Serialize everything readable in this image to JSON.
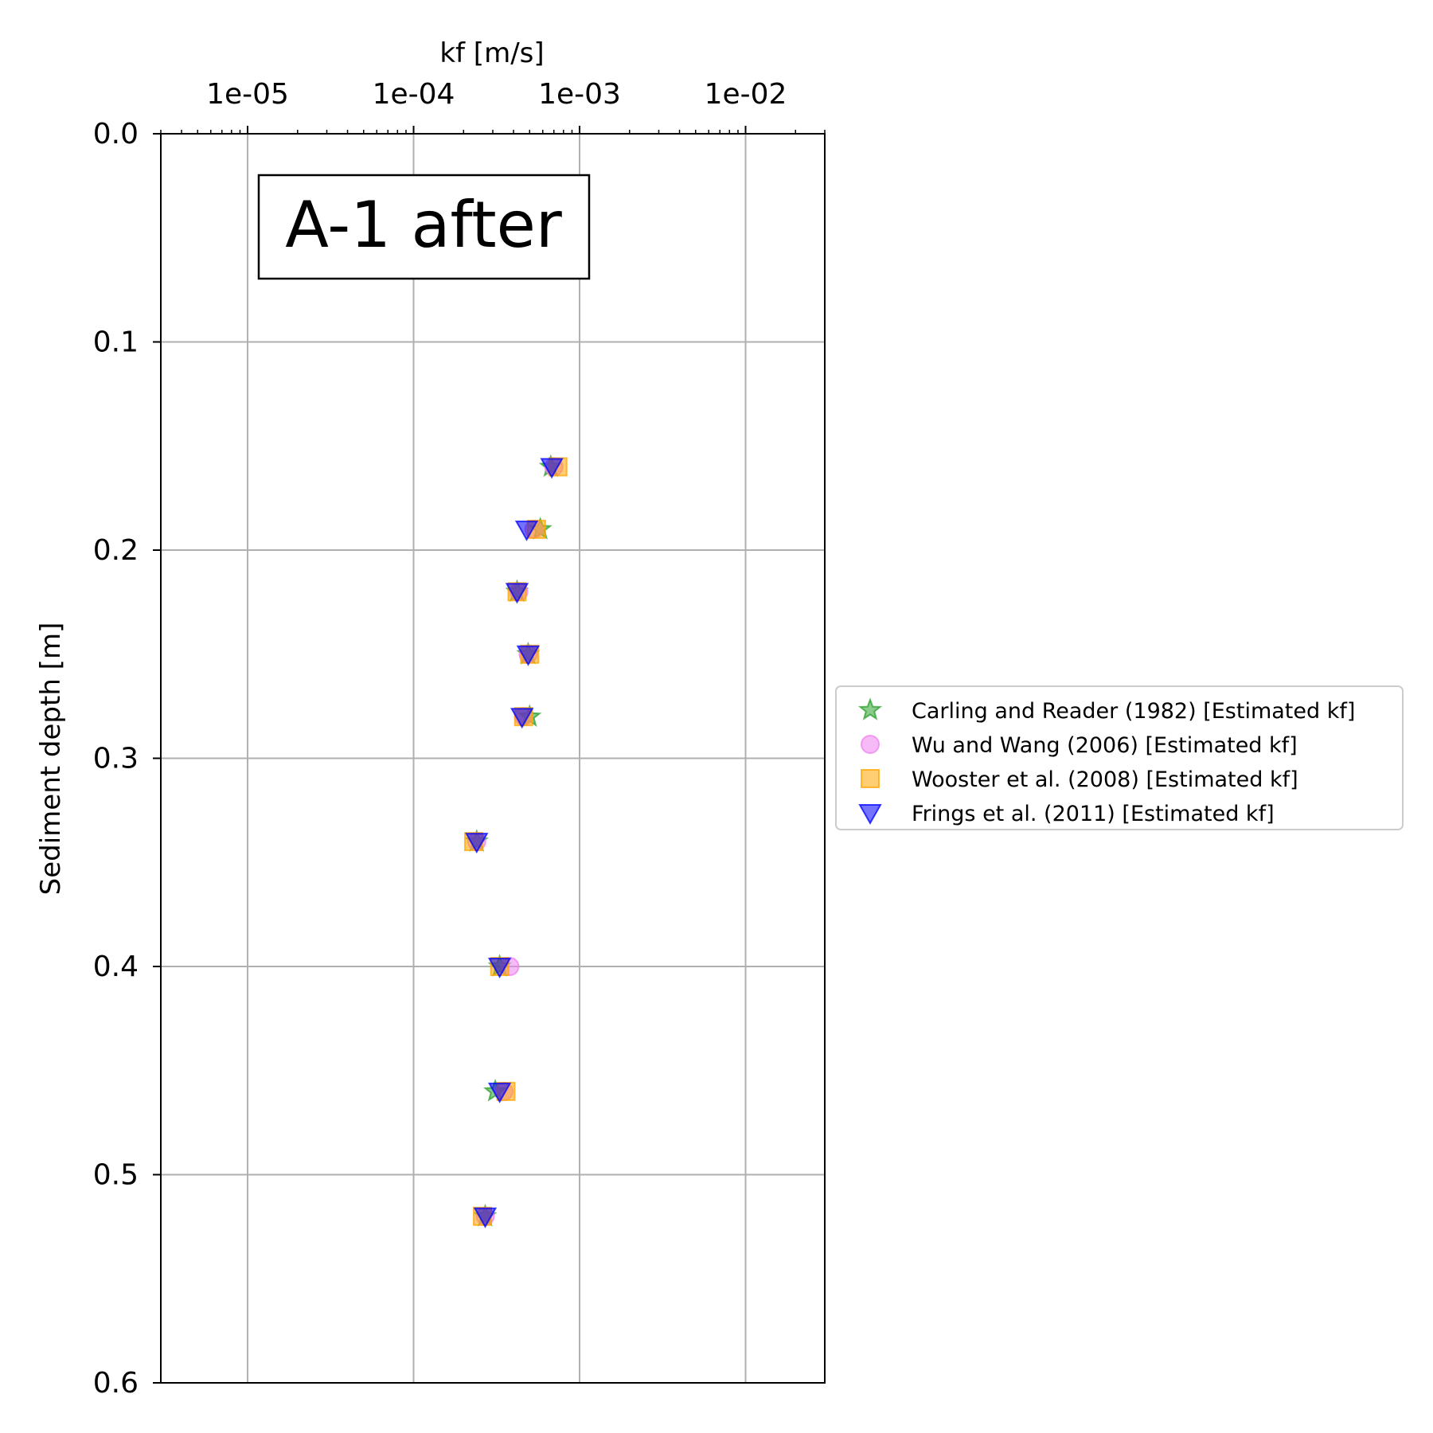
{
  "chart_data": {
    "type": "scatter",
    "title": "",
    "annotation": "A-1 after",
    "xlabel": "kf [m/s]",
    "ylabel": "Sediment depth [m]",
    "x_scale": "log",
    "x_axis_position": "top",
    "xlim": [
      3e-06,
      0.03
    ],
    "ylim": [
      0.6,
      0.0
    ],
    "y_inverted": true,
    "x_ticks": [
      1e-05,
      0.0001,
      0.001,
      0.01
    ],
    "x_tick_labels": [
      "1e-05",
      "1e-04",
      "1e-03",
      "1e-02"
    ],
    "y_ticks": [
      0.0,
      0.1,
      0.2,
      0.3,
      0.4,
      0.5,
      0.6
    ],
    "y_tick_labels": [
      "0.0",
      "0.1",
      "0.2",
      "0.3",
      "0.4",
      "0.5",
      "0.6"
    ],
    "grid": true,
    "legend_position": "outside-right",
    "series": [
      {
        "name": "Carling and Reader (1982) [Estimated kf]",
        "marker": "star",
        "color": "#2ca02c",
        "points": [
          {
            "x": 0.00067,
            "y": 0.16
          },
          {
            "x": 0.00058,
            "y": 0.19
          },
          {
            "x": 0.00042,
            "y": 0.22
          },
          {
            "x": 0.00049,
            "y": 0.25
          },
          {
            "x": 0.0005,
            "y": 0.28
          },
          {
            "x": 0.00024,
            "y": 0.34
          },
          {
            "x": 0.00033,
            "y": 0.4
          },
          {
            "x": 0.00031,
            "y": 0.46
          },
          {
            "x": 0.00027,
            "y": 0.52
          }
        ]
      },
      {
        "name": "Wu and Wang (2006) [Estimated kf]",
        "marker": "circle",
        "color": "#ee82ee",
        "points": [
          {
            "x": 0.0007,
            "y": 0.16
          },
          {
            "x": 0.00053,
            "y": 0.19
          },
          {
            "x": 0.00043,
            "y": 0.22
          },
          {
            "x": 0.00049,
            "y": 0.25
          },
          {
            "x": 0.00046,
            "y": 0.28
          },
          {
            "x": 0.00024,
            "y": 0.34
          },
          {
            "x": 0.00038,
            "y": 0.4
          },
          {
            "x": 0.00035,
            "y": 0.46
          },
          {
            "x": 0.00027,
            "y": 0.52
          }
        ]
      },
      {
        "name": "Wooster et al. (2008) [Estimated kf]",
        "marker": "square",
        "color": "#ffa500",
        "points": [
          {
            "x": 0.00074,
            "y": 0.16
          },
          {
            "x": 0.00055,
            "y": 0.19
          },
          {
            "x": 0.00042,
            "y": 0.22
          },
          {
            "x": 0.0005,
            "y": 0.25
          },
          {
            "x": 0.00046,
            "y": 0.28
          },
          {
            "x": 0.00023,
            "y": 0.34
          },
          {
            "x": 0.00033,
            "y": 0.4
          },
          {
            "x": 0.00036,
            "y": 0.46
          },
          {
            "x": 0.00026,
            "y": 0.52
          }
        ]
      },
      {
        "name": "Frings et al. (2011)  [Estimated kf]",
        "marker": "triangle-down",
        "color": "#0000ff",
        "points": [
          {
            "x": 0.00068,
            "y": 0.16
          },
          {
            "x": 0.00048,
            "y": 0.19
          },
          {
            "x": 0.00042,
            "y": 0.22
          },
          {
            "x": 0.00049,
            "y": 0.25
          },
          {
            "x": 0.00045,
            "y": 0.28
          },
          {
            "x": 0.00024,
            "y": 0.34
          },
          {
            "x": 0.00033,
            "y": 0.4
          },
          {
            "x": 0.00033,
            "y": 0.46
          },
          {
            "x": 0.00027,
            "y": 0.52
          }
        ]
      }
    ]
  }
}
